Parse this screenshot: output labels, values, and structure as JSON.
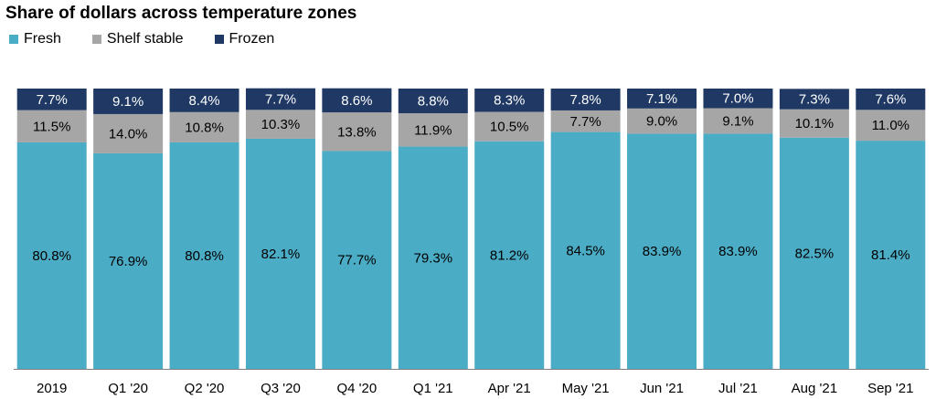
{
  "chart_data": {
    "type": "bar",
    "stacked": true,
    "title": "Share of dollars across temperature zones",
    "categories": [
      "2019",
      "Q1 '20",
      "Q2 '20",
      "Q3 '20",
      "Q4 '20",
      "Q1 '21",
      "Apr '21",
      "May '21",
      "Jun '21",
      "Jul '21",
      "Aug '21",
      "Sep '21"
    ],
    "series": [
      {
        "name": "Fresh",
        "color": "#4bacc6",
        "values": [
          80.8,
          76.9,
          80.8,
          82.1,
          77.7,
          79.3,
          81.2,
          84.5,
          83.9,
          83.9,
          82.5,
          81.4
        ],
        "labels": [
          "80.8%",
          "76.9%",
          "80.8%",
          "82.1%",
          "77.7%",
          "79.3%",
          "81.2%",
          "84.5%",
          "83.9%",
          "83.9%",
          "82.5%",
          "81.4%"
        ]
      },
      {
        "name": "Shelf stable",
        "color": "#a6a6a6",
        "values": [
          11.5,
          14.0,
          10.8,
          10.3,
          13.8,
          11.9,
          10.5,
          7.7,
          9.0,
          9.1,
          10.1,
          11.0
        ],
        "labels": [
          "11.5%",
          "14.0%",
          "10.8%",
          "10.3%",
          "13.8%",
          "11.9%",
          "10.5%",
          "7.7%",
          "9.0%",
          "9.1%",
          "10.1%",
          "11.0%"
        ]
      },
      {
        "name": "Frozen",
        "color": "#1f3864",
        "values": [
          7.7,
          9.1,
          8.4,
          7.7,
          8.6,
          8.8,
          8.3,
          7.8,
          7.1,
          7.0,
          7.3,
          7.6
        ],
        "labels": [
          "7.7%",
          "9.1%",
          "8.4%",
          "7.7%",
          "8.6%",
          "8.8%",
          "8.3%",
          "7.8%",
          "7.1%",
          "7.0%",
          "7.3%",
          "7.6%"
        ]
      }
    ],
    "ylim": [
      0,
      100
    ],
    "grid": false,
    "legend_position": "top-left"
  }
}
